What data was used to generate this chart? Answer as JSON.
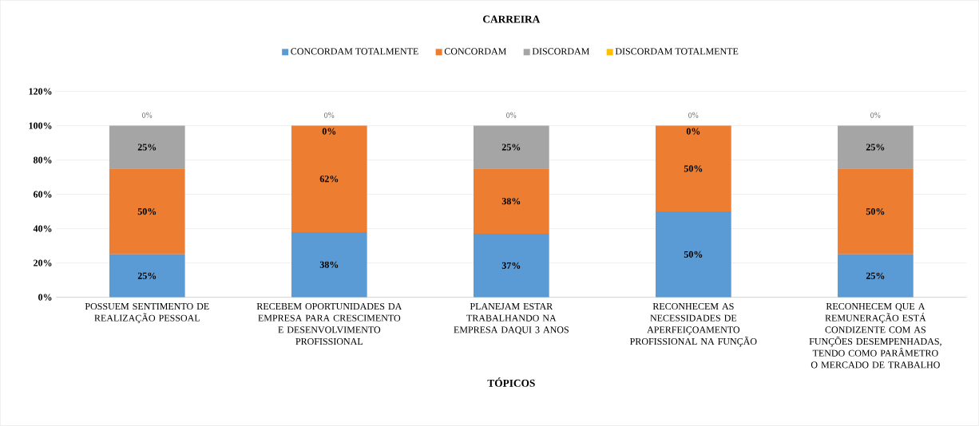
{
  "chart_data": {
    "type": "bar",
    "stacked": true,
    "title": "CARREIRA",
    "xlabel": "TÓPICOS",
    "categories": [
      "POSSUEM SENTIMENTO DE REALIZAÇÃO PESSOAL",
      "RECEBEM OPORTUNIDADES DA EMPRESA PARA CRESCIMENTO E DESENVOLVIMENTO PROFISSIONAL",
      "PLANEJAM ESTAR TRABALHANDO NA EMPRESA DAQUI 3 ANOS",
      "RECONHECEM AS NECESSIDADES DE APERFEIÇOAMENTO PROFISSIONAL NA FUNÇÃO",
      "RECONHECEM QUE A REMUNERAÇÃO ESTÁ CONDIZENTE COM AS FUNÇÕES DESEMPENHADAS, TENDO COMO PARÂMETRO O MERCADO DE TRABALHO"
    ],
    "series": [
      {
        "name": "CONCORDAM TOTALMENTE",
        "color": "#5b9bd5",
        "values": [
          25,
          38,
          37,
          50,
          25
        ],
        "value_labels": [
          "25%",
          "38%",
          "37%",
          "50%",
          "25%"
        ]
      },
      {
        "name": "CONCORDAM",
        "color": "#ed7d31",
        "values": [
          50,
          62,
          38,
          50,
          50
        ],
        "value_labels": [
          "50%",
          "62%",
          "38%",
          "50%",
          "50%"
        ]
      },
      {
        "name": "DISCORDAM",
        "color": "#a5a5a5",
        "values": [
          25,
          0,
          25,
          0,
          25
        ],
        "value_labels": [
          "25%",
          "0%",
          "25%",
          "0%",
          "25%"
        ]
      },
      {
        "name": "DISCORDAM TOTALMENTE",
        "color": "#ffc000",
        "values": [
          0,
          0,
          0,
          0,
          0
        ],
        "value_labels": [
          "0%",
          "0%",
          "0%",
          "0%",
          "0%"
        ]
      }
    ],
    "ylim": [
      0,
      120
    ],
    "yticks": [
      {
        "value": 0,
        "label": "0%"
      },
      {
        "value": 20,
        "label": "20%"
      },
      {
        "value": 40,
        "label": "40%"
      },
      {
        "value": 60,
        "label": "60%"
      },
      {
        "value": 80,
        "label": "80%"
      },
      {
        "value": 100,
        "label": "100%"
      },
      {
        "value": 120,
        "label": "120%"
      }
    ],
    "grid": "y",
    "legend": "top"
  }
}
